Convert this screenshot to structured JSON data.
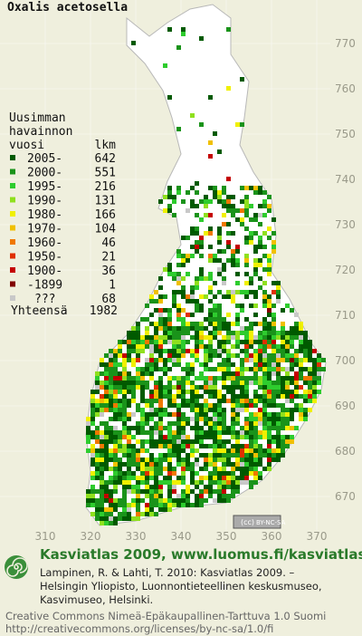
{
  "title": "Oxalis acetosella",
  "legend": {
    "heading": [
      "Uusimman",
      "havainnon",
      "vuosi"
    ],
    "count_heading": "lkm",
    "rows": [
      {
        "label": "2005-",
        "count": 642,
        "color": "#005a00"
      },
      {
        "label": "2000-",
        "count": 551,
        "color": "#1a931a"
      },
      {
        "label": "1995-",
        "count": 216,
        "color": "#2ecc2e"
      },
      {
        "label": "1990-",
        "count": 131,
        "color": "#8fe01e"
      },
      {
        "label": "1980-",
        "count": 166,
        "color": "#f0f000"
      },
      {
        "label": "1970-",
        "count": 104,
        "color": "#f0c000"
      },
      {
        "label": "1960-",
        "count": 46,
        "color": "#f07800"
      },
      {
        "label": "1950-",
        "count": 21,
        "color": "#e03000"
      },
      {
        "label": "1900-",
        "count": 36,
        "color": "#c40000"
      },
      {
        "label": "-1899",
        "count": 1,
        "color": "#800000"
      },
      {
        "label": "???",
        "count": 68,
        "color": "#c8c8c8"
      }
    ],
    "total_label": "Yhteensä",
    "total": 1982
  },
  "grid": {
    "north": [
      770,
      760,
      750,
      740,
      730,
      720,
      710,
      700,
      690,
      680,
      670
    ],
    "east": [
      310,
      320,
      330,
      340,
      350,
      360,
      370
    ]
  },
  "badge": "BY-NC-SA",
  "footer": {
    "site": "Kasviatlas 2009, www.luomus.fi/kasviatlas",
    "citation": [
      "Lampinen, R. & Lahti, T. 2010: Kasviatlas 2009. –",
      "Helsingin Yliopisto, Luonnontieteellinen keskusmuseo,",
      "Kasvimuseo, Helsinki."
    ],
    "license": [
      "Creative Commons Nimeä-Epäkaupallinen-Tarttuva 1.0 Suomi",
      "http://creativecommons.org/licenses/by-nc-sa/1.0/fi"
    ]
  }
}
